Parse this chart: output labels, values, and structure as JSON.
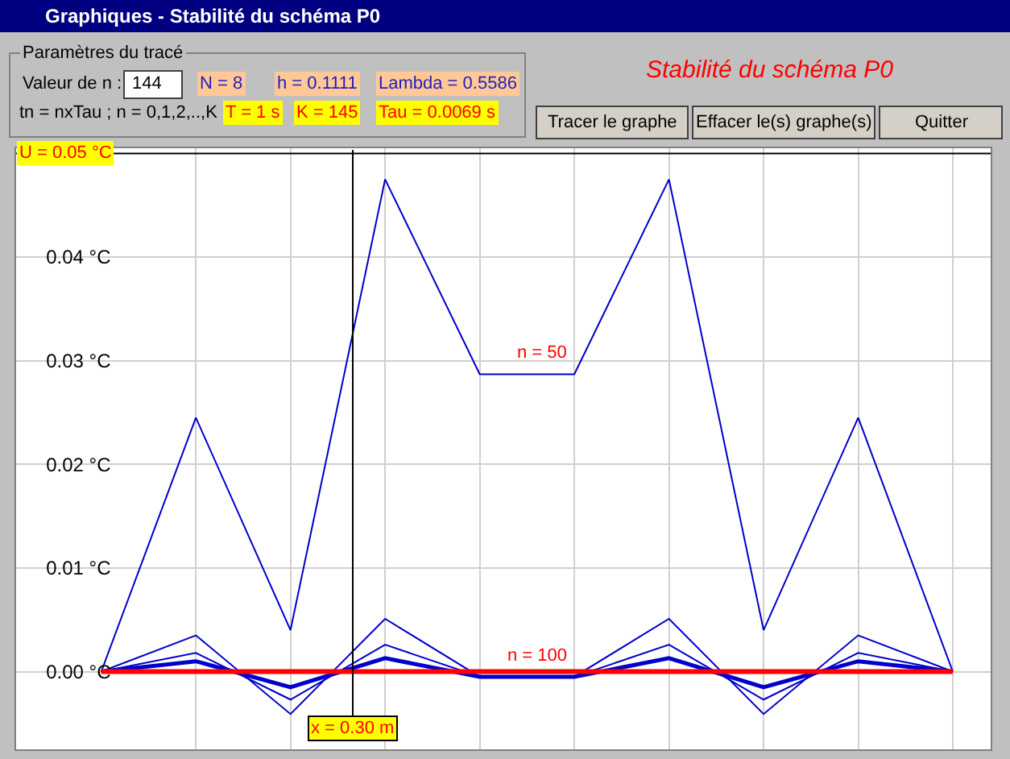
{
  "chart_data": {
    "type": "line",
    "title": "Stabilité du schéma P0",
    "subtitle": "Graphiques - Stabilité du schéma P0",
    "categories": [
      null,
      null,
      null,
      null,
      null,
      null,
      null,
      null,
      null,
      null
    ],
    "series": [
      {
        "color": "#0000cc",
        "values": [
          0,
          0.0245,
          0.004,
          0.0475,
          0.0287,
          0.0287,
          0.0475,
          0.004,
          0.0245,
          0
        ]
      },
      {
        "color": "#0000cc",
        "values": [
          0,
          0.0035,
          -0.0041,
          0.0051,
          -0.0005,
          -0.0005,
          0.0051,
          -0.0041,
          0.0035,
          0
        ]
      },
      {
        "color": "#0000cc",
        "values": [
          0,
          0.0018,
          -0.0027,
          0.0026,
          -0.0005,
          -0.0005,
          0.0026,
          -0.0027,
          0.0018,
          0
        ]
      },
      {
        "color": "#0000cc",
        "values": [
          0,
          0.001,
          -0.0015,
          0.0013,
          -0.0005,
          -0.0005,
          0.0013,
          -0.0015,
          0.001,
          0
        ]
      },
      {
        "color": "#ff0000",
        "values": [
          0,
          0,
          0,
          0,
          0,
          0,
          0,
          0,
          0,
          0
        ]
      }
    ],
    "ylim": [
      -0.0075,
      0.0505
    ],
    "yticks": [
      {
        "value": 0,
        "label": "0.00 °C"
      },
      {
        "value": 0.01,
        "label": "0.01 °C"
      },
      {
        "value": 0.02,
        "label": "0.02 °C"
      },
      {
        "value": 0.03,
        "label": "0.03 °C"
      },
      {
        "value": 0.04,
        "label": "0.04 °C"
      }
    ],
    "tick_labels": "y",
    "grid": true,
    "marker": "none",
    "line_style": "solid",
    "ref_lines": [
      {
        "axis": "y",
        "value": 0.05,
        "label": "U = 0.05 °C",
        "color": "#000000"
      }
    ],
    "annotations": [
      {
        "text": "n = 50",
        "y": 0.0295
      },
      {
        "text": "n = 100",
        "y": 0.0003
      },
      "Paramètres du tracé",
      "Valeur de n :",
      "144",
      "N = 8",
      "h = 0.1111",
      "Lambda = 0.5586",
      "tn = nxTau ; n = 0,1,2,..,K",
      "T = 1 s",
      "K = 145",
      "Tau = 0.0069 s",
      "Tracer le graphe",
      "Effacer le(s) graphe(s)",
      "Quitter",
      "x = 0.30 m"
    ]
  }
}
